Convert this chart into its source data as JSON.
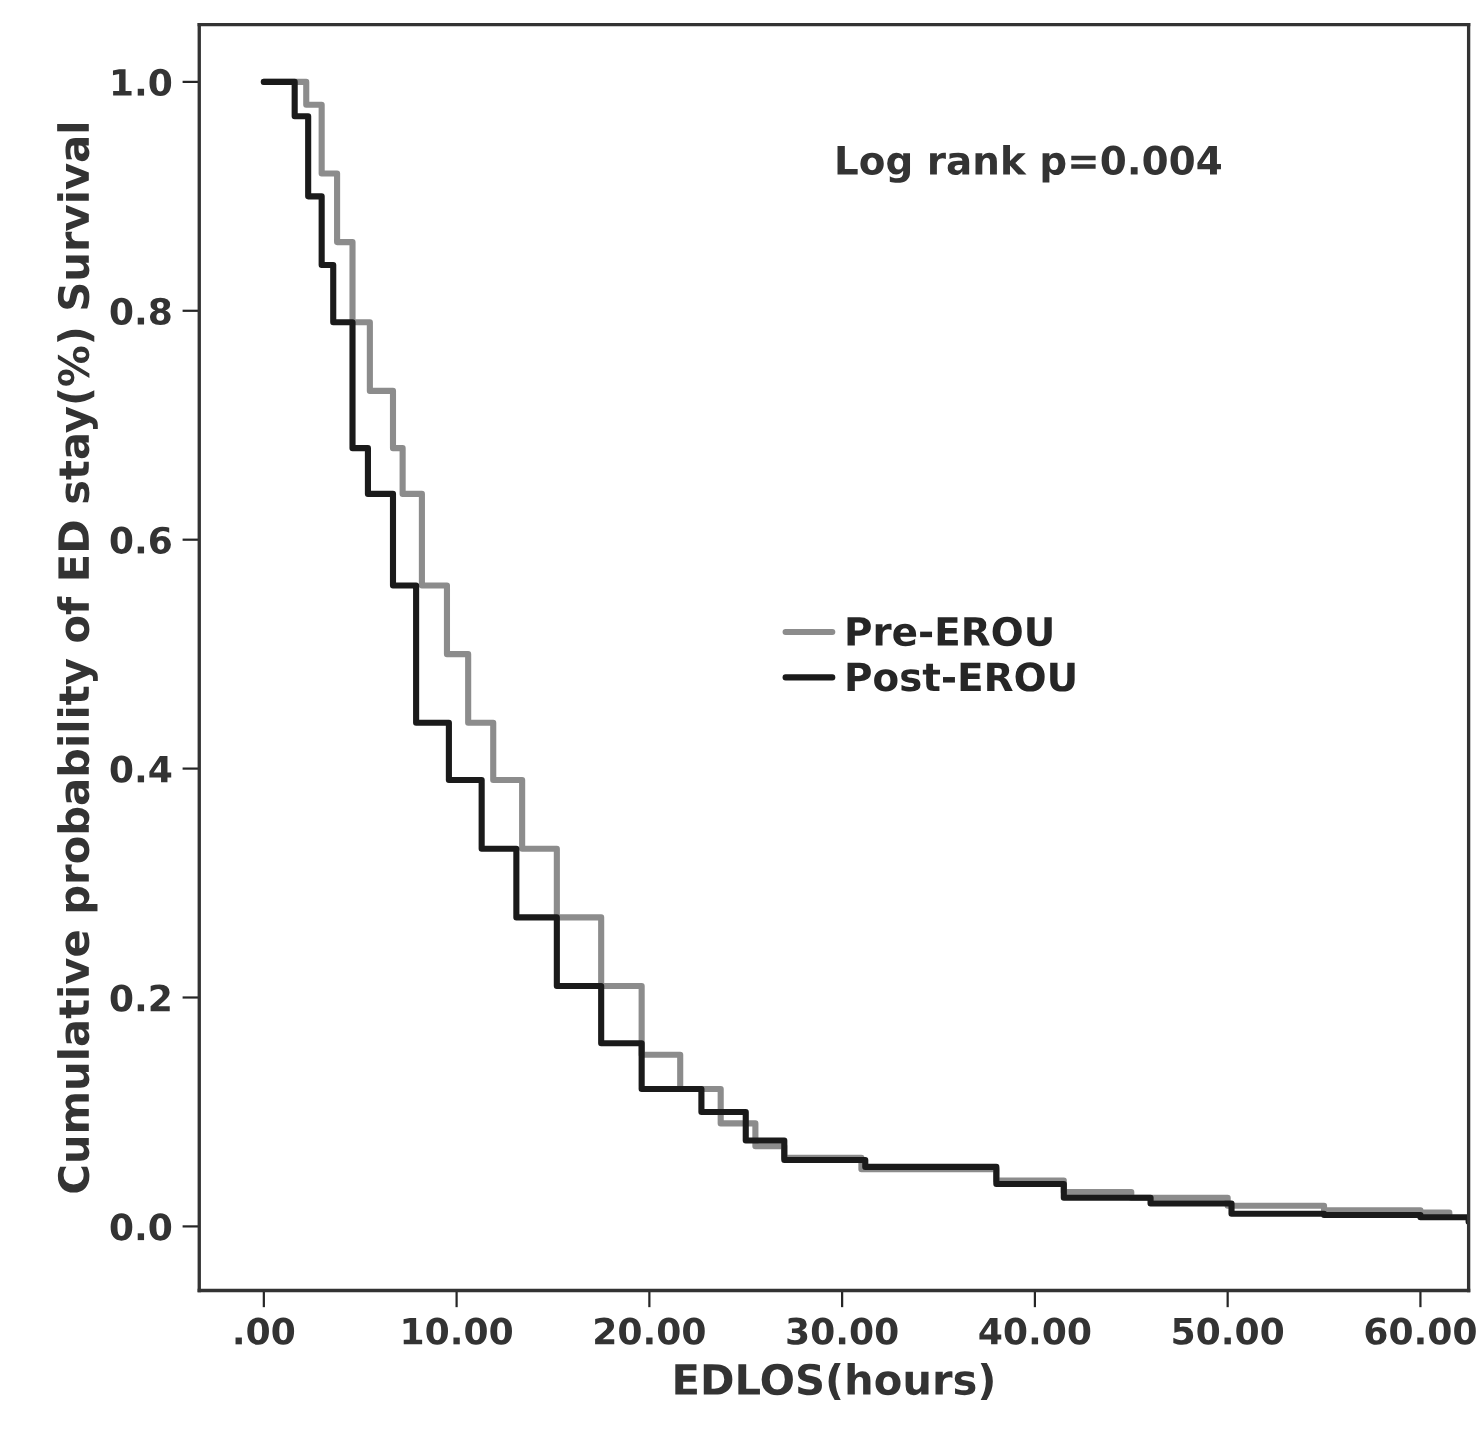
{
  "chart_data": {
    "type": "step",
    "ylabel": "Cumulative probability of ED stay(%) Survival",
    "xlabel": "EDLOS(hours)",
    "annotations": [
      "Log rank p=0.004"
    ],
    "xlim": [
      -3.35,
      62.5
    ],
    "ylim": [
      -0.056,
      1.05
    ],
    "xticks": [
      {
        "value": 0,
        "label": ".00"
      },
      {
        "value": 10,
        "label": "10.00"
      },
      {
        "value": 20,
        "label": "20.00"
      },
      {
        "value": 30,
        "label": "30.00"
      },
      {
        "value": 40,
        "label": "40.00"
      },
      {
        "value": 50,
        "label": "50.00"
      },
      {
        "value": 60,
        "label": "60.00"
      }
    ],
    "yticks": [
      {
        "value": 0,
        "label": "0.0"
      },
      {
        "value": 0.2,
        "label": "0.2"
      },
      {
        "value": 0.4,
        "label": "0.4"
      },
      {
        "value": 0.6,
        "label": "0.6"
      },
      {
        "value": 0.8,
        "label": "0.8"
      },
      {
        "value": 1.0,
        "label": "1.0"
      }
    ],
    "grid": false,
    "legend": "center right",
    "series": [
      {
        "name": "Pre-EROU",
        "color": "#8c8c8c",
        "x": [
          0,
          1.5,
          2.2,
          3.0,
          3.8,
          4.6,
          5.5,
          6.7,
          7.2,
          8.2,
          9.5,
          10.6,
          11.9,
          13.4,
          15.2,
          17.5,
          19.6,
          21.6,
          23.7,
          25.5,
          27,
          31,
          38,
          41.5,
          45,
          50,
          55,
          60,
          61.5
        ],
        "values": [
          1,
          1,
          0.98,
          0.92,
          0.86,
          0.79,
          0.73,
          0.68,
          0.64,
          0.56,
          0.5,
          0.44,
          0.39,
          0.33,
          0.27,
          0.21,
          0.15,
          0.12,
          0.09,
          0.07,
          0.06,
          0.05,
          0.04,
          0.03,
          0.025,
          0.018,
          0.014,
          0.012,
          0.01
        ]
      },
      {
        "name": "Post-EROU",
        "color": "#1a1a1a",
        "x": [
          0,
          1.0,
          1.6,
          2.3,
          3.0,
          3.6,
          4.6,
          5.4,
          6.7,
          7.9,
          9.6,
          11.3,
          13.1,
          15.2,
          17.5,
          19.6,
          22.7,
          25,
          27,
          31.2,
          38,
          41.5,
          46,
          50.2,
          55,
          60,
          62.5
        ],
        "values": [
          1,
          1,
          0.97,
          0.9,
          0.84,
          0.79,
          0.68,
          0.64,
          0.56,
          0.44,
          0.39,
          0.33,
          0.27,
          0.21,
          0.16,
          0.12,
          0.1,
          0.075,
          0.058,
          0.052,
          0.037,
          0.025,
          0.02,
          0.011,
          0.01,
          0.008,
          0.004
        ]
      }
    ]
  }
}
